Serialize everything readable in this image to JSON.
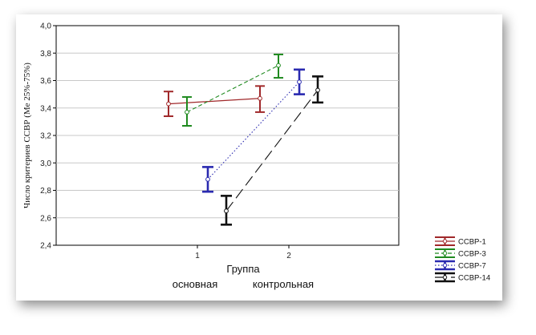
{
  "chart_data": {
    "type": "line",
    "xlabel": "Группа",
    "x_categories": [
      "1",
      "2"
    ],
    "group_labels": [
      "основная",
      "контрольная"
    ],
    "ylabel": "Число критериев ССВР (Me 25%-75%)",
    "ylim": [
      2.4,
      4.0
    ],
    "yticks": [
      "2,4",
      "2,6",
      "2,8",
      "3,0",
      "3,2",
      "3,4",
      "3,6",
      "3,8",
      "4,0"
    ],
    "grid": true,
    "legend_position": "bottom-right outside",
    "series": [
      {
        "name": "ССВР-1",
        "color": "#a0282a",
        "dash": "solid",
        "marker": "circle",
        "points": [
          {
            "x": 1,
            "y": 3.43,
            "low": 3.34,
            "high": 3.52
          },
          {
            "x": 2,
            "y": 3.47,
            "low": 3.37,
            "high": 3.56
          }
        ]
      },
      {
        "name": "ССВР-3",
        "color": "#1f8a1f",
        "dash": "short-dash",
        "marker": "circle",
        "points": [
          {
            "x": 1,
            "y": 3.37,
            "low": 3.27,
            "high": 3.48
          },
          {
            "x": 2,
            "y": 3.71,
            "low": 3.62,
            "high": 3.79
          }
        ]
      },
      {
        "name": "ССВР-7",
        "color": "#2a2ab0",
        "dash": "dot",
        "marker": "circle",
        "points": [
          {
            "x": 1,
            "y": 2.88,
            "low": 2.79,
            "high": 2.97
          },
          {
            "x": 2,
            "y": 3.59,
            "low": 3.5,
            "high": 3.68
          }
        ]
      },
      {
        "name": "ССВР-14",
        "color": "#111111",
        "dash": "long-dash",
        "marker": "circle",
        "points": [
          {
            "x": 1,
            "y": 2.65,
            "low": 2.55,
            "high": 2.76
          },
          {
            "x": 2,
            "y": 3.53,
            "low": 3.44,
            "high": 3.63
          }
        ]
      }
    ]
  }
}
